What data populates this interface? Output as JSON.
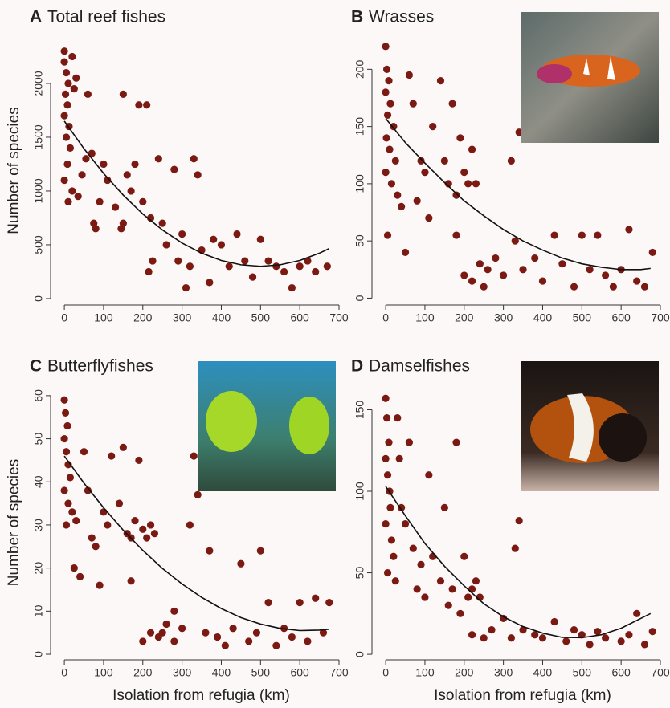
{
  "chart_data": [
    {
      "type": "scatter",
      "panel": "A",
      "title": "Total reef fishes",
      "ylabel": "Number of species",
      "x": [
        0,
        0,
        5,
        10,
        3,
        8,
        0,
        12,
        5,
        20,
        30,
        25,
        15,
        8,
        0,
        20,
        35,
        10,
        45,
        55,
        60,
        70,
        80,
        90,
        100,
        75,
        110,
        130,
        150,
        160,
        170,
        180,
        145,
        190,
        210,
        200,
        220,
        215,
        240,
        250,
        280,
        300,
        330,
        340,
        260,
        290,
        320,
        350,
        370,
        380,
        400,
        420,
        440,
        460,
        480,
        500,
        520,
        540,
        560,
        580,
        600,
        620,
        640,
        670,
        225,
        310,
        150
      ],
      "y": [
        2300,
        2200,
        2100,
        2000,
        1900,
        1800,
        1700,
        1600,
        1500,
        2250,
        2050,
        1950,
        1400,
        1250,
        1100,
        1000,
        950,
        900,
        1150,
        1300,
        1900,
        1350,
        650,
        900,
        1250,
        700,
        1100,
        850,
        1900,
        1150,
        1000,
        1250,
        650,
        1800,
        1800,
        900,
        750,
        250,
        1300,
        700,
        1200,
        600,
        1300,
        1150,
        500,
        350,
        300,
        450,
        150,
        550,
        500,
        300,
        600,
        350,
        200,
        550,
        350,
        300,
        250,
        100,
        300,
        350,
        250,
        300,
        350,
        100,
        700
      ],
      "color": "#7b1a12",
      "fit": {
        "x": [
          0,
          50,
          100,
          150,
          200,
          250,
          300,
          350,
          400,
          450,
          500,
          550,
          600,
          650,
          675
        ],
        "y": [
          1650,
          1394,
          1164,
          962,
          786,
          638,
          516,
          422,
          354,
          314,
          300,
          314,
          354,
          422,
          465
        ],
        "color": "#111111"
      },
      "xlim": [
        -35,
        700
      ],
      "ylim": [
        -60,
        2440
      ],
      "xticks": [
        0,
        100,
        200,
        300,
        400,
        500,
        600,
        700
      ],
      "yticks": [
        0,
        500,
        1000,
        1500,
        2000
      ]
    },
    {
      "type": "scatter",
      "panel": "B",
      "title": "Wrasses",
      "x": [
        0,
        3,
        8,
        0,
        12,
        5,
        20,
        2,
        10,
        25,
        0,
        15,
        30,
        40,
        5,
        50,
        60,
        70,
        90,
        100,
        80,
        110,
        120,
        140,
        150,
        160,
        170,
        180,
        190,
        200,
        210,
        220,
        230,
        180,
        200,
        220,
        240,
        260,
        280,
        300,
        320,
        330,
        340,
        350,
        380,
        400,
        430,
        450,
        480,
        500,
        520,
        540,
        560,
        580,
        600,
        620,
        640,
        660,
        680,
        250
      ],
      "y": [
        220,
        200,
        190,
        180,
        170,
        160,
        150,
        140,
        130,
        120,
        110,
        100,
        90,
        80,
        55,
        40,
        195,
        170,
        120,
        110,
        85,
        70,
        150,
        190,
        120,
        100,
        170,
        90,
        140,
        110,
        100,
        130,
        100,
        55,
        20,
        15,
        30,
        25,
        35,
        20,
        120,
        50,
        145,
        25,
        35,
        15,
        55,
        30,
        10,
        55,
        25,
        55,
        20,
        10,
        25,
        60,
        15,
        10,
        40,
        10
      ],
      "color": "#7b1a12",
      "fit": {
        "x": [
          0,
          50,
          100,
          150,
          200,
          250,
          300,
          350,
          400,
          450,
          500,
          550,
          600,
          650,
          675
        ],
        "y": [
          157,
          136,
          118,
          101,
          85,
          72,
          60,
          50,
          42,
          35,
          30,
          27,
          25,
          25,
          26
        ],
        "color": "#111111"
      },
      "xlim": [
        -35,
        700
      ],
      "ylim": [
        -6,
        229
      ],
      "xticks": [
        0,
        100,
        200,
        300,
        400,
        500,
        600,
        700
      ],
      "yticks": [
        0,
        50,
        100,
        150,
        200
      ]
    },
    {
      "type": "scatter",
      "panel": "C",
      "title": "Butterflyfishes",
      "ylabel": "Number of species",
      "xlabel": "Isolation from refugia (km)",
      "x": [
        0,
        3,
        8,
        0,
        5,
        10,
        15,
        0,
        10,
        20,
        5,
        30,
        25,
        40,
        50,
        60,
        70,
        80,
        90,
        100,
        110,
        120,
        140,
        150,
        160,
        170,
        180,
        190,
        200,
        210,
        220,
        230,
        170,
        250,
        200,
        220,
        240,
        260,
        280,
        300,
        320,
        330,
        340,
        360,
        370,
        390,
        410,
        430,
        450,
        470,
        490,
        500,
        520,
        540,
        560,
        580,
        600,
        620,
        640,
        660,
        675,
        280
      ],
      "y": [
        59,
        56,
        53,
        50,
        47,
        44,
        41,
        38,
        35,
        33,
        30,
        31,
        20,
        18,
        47,
        38,
        27,
        25,
        16,
        33,
        30,
        46,
        35,
        48,
        28,
        27,
        31,
        45,
        29,
        27,
        30,
        28,
        17,
        5,
        3,
        5,
        4,
        7,
        3,
        6,
        30,
        46,
        37,
        5,
        24,
        4,
        2,
        6,
        21,
        3,
        5,
        24,
        12,
        2,
        6,
        4,
        12,
        3,
        13,
        5,
        12,
        10
      ],
      "color": "#7b1a12",
      "fit": {
        "x": [
          0,
          50,
          100,
          150,
          200,
          250,
          300,
          350,
          400,
          450,
          500,
          550,
          600,
          650,
          675
        ],
        "y": [
          46,
          39.7,
          34,
          28.8,
          24.1,
          19.9,
          16.3,
          13.2,
          10.6,
          8.5,
          7,
          6,
          5.5,
          5.6,
          5.8
        ],
        "color": "#111111"
      },
      "xlim": [
        -35,
        700
      ],
      "ylim": [
        -1.3,
        62.4
      ],
      "xticks": [
        0,
        100,
        200,
        300,
        400,
        500,
        600,
        700
      ],
      "yticks": [
        0,
        10,
        20,
        30,
        40,
        50,
        60
      ]
    },
    {
      "type": "scatter",
      "panel": "D",
      "title": "Damselfishes",
      "xlabel": "Isolation from refugia (km)",
      "x": [
        0,
        3,
        8,
        0,
        5,
        10,
        12,
        0,
        15,
        20,
        5,
        25,
        30,
        35,
        40,
        50,
        60,
        70,
        80,
        90,
        100,
        110,
        120,
        140,
        150,
        160,
        170,
        180,
        190,
        200,
        210,
        220,
        230,
        240,
        220,
        250,
        270,
        300,
        320,
        340,
        350,
        380,
        400,
        430,
        460,
        480,
        500,
        520,
        540,
        560,
        600,
        620,
        640,
        660,
        680,
        330
      ],
      "y": [
        157,
        145,
        130,
        120,
        110,
        100,
        90,
        80,
        70,
        60,
        50,
        45,
        145,
        120,
        90,
        80,
        130,
        65,
        40,
        55,
        35,
        110,
        60,
        45,
        90,
        30,
        40,
        130,
        25,
        60,
        35,
        40,
        45,
        35,
        12,
        10,
        15,
        22,
        10,
        82,
        15,
        12,
        10,
        20,
        8,
        15,
        12,
        6,
        14,
        10,
        8,
        12,
        25,
        6,
        14,
        65
      ],
      "color": "#7b1a12",
      "fit": {
        "x": [
          0,
          50,
          100,
          150,
          200,
          250,
          300,
          350,
          400,
          450,
          500,
          550,
          600,
          650,
          675
        ],
        "y": [
          103,
          85,
          68,
          54,
          42,
          31,
          23,
          17,
          13,
          10.4,
          10.2,
          12,
          16,
          22,
          25
        ],
        "color": "#111111"
      },
      "xlim": [
        -35,
        700
      ],
      "ylim": [
        -3.4,
        165
      ],
      "xticks": [
        0,
        100,
        200,
        300,
        400,
        500,
        600,
        700
      ],
      "yticks": [
        0,
        50,
        100,
        150
      ]
    }
  ]
}
